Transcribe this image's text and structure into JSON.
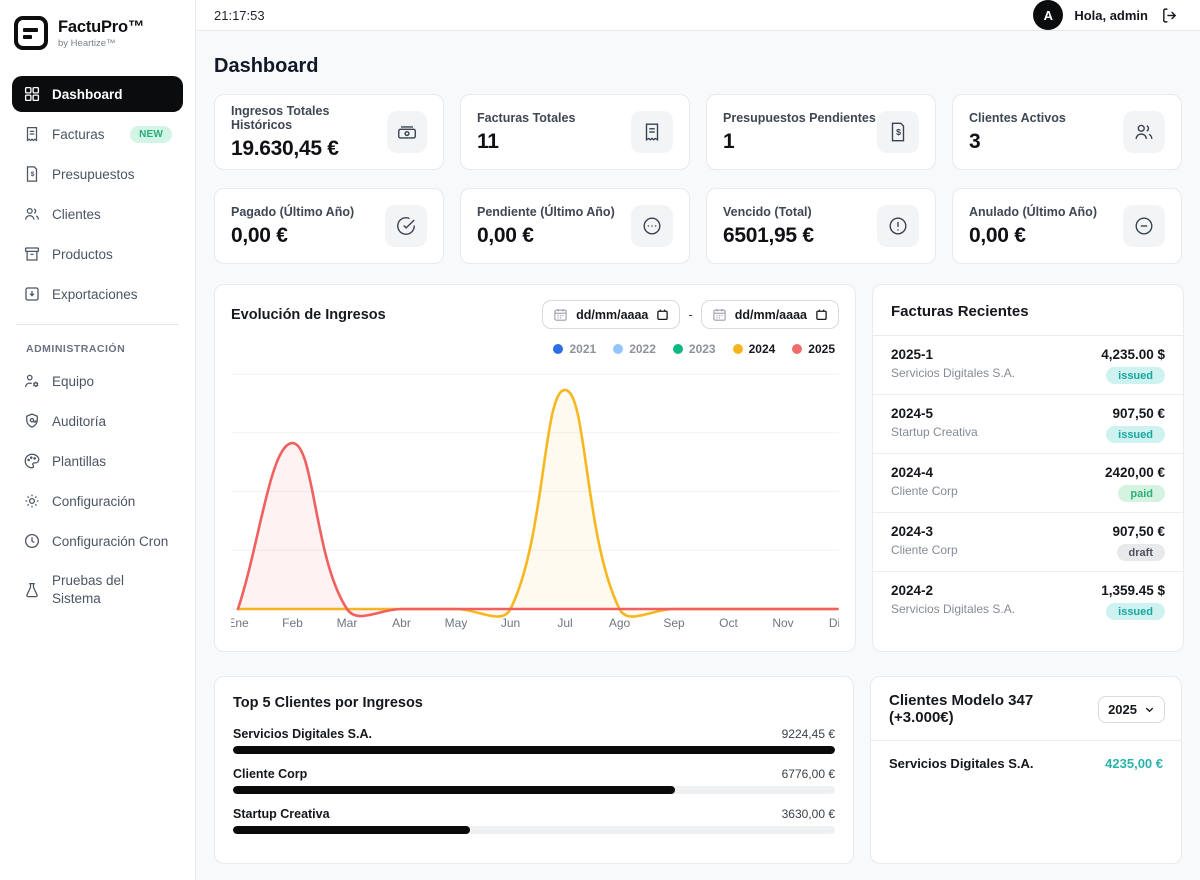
{
  "brand": {
    "name": "FactuPro™",
    "byline": "by Heartize™"
  },
  "topbar": {
    "clock": "21:17:53",
    "greeting": "Hola, admin",
    "avatar_initial": "A"
  },
  "sidebar": {
    "items": [
      {
        "label": "Dashboard",
        "active": true
      },
      {
        "label": "Facturas",
        "badge": "NEW"
      },
      {
        "label": "Presupuestos"
      },
      {
        "label": "Clientes"
      },
      {
        "label": "Productos"
      },
      {
        "label": "Exportaciones"
      }
    ],
    "section_label": "ADMINISTRACIÓN",
    "admin_items": [
      {
        "label": "Equipo"
      },
      {
        "label": "Auditoría"
      },
      {
        "label": "Plantillas"
      },
      {
        "label": "Configuración"
      },
      {
        "label": "Configuración Cron"
      },
      {
        "label": "Pruebas del Sistema"
      }
    ]
  },
  "page": {
    "title": "Dashboard"
  },
  "stats": [
    {
      "label": "Ingresos Totales Históricos",
      "value": "19.630,45 €",
      "icon": "banknote-icon"
    },
    {
      "label": "Facturas Totales",
      "value": "11",
      "icon": "invoice-icon"
    },
    {
      "label": "Presupuestos Pendientes",
      "value": "1",
      "icon": "quote-icon"
    },
    {
      "label": "Clientes Activos",
      "value": "3",
      "icon": "users-icon"
    },
    {
      "label": "Pagado (Último Año)",
      "value": "0,00 €",
      "icon": "check-circle-icon"
    },
    {
      "label": "Pendiente (Último Año)",
      "value": "0,00 €",
      "icon": "ellipsis-circle-icon"
    },
    {
      "label": "Vencido (Total)",
      "value": "6501,95 €",
      "icon": "alert-circle-icon"
    },
    {
      "label": "Anulado (Último Año)",
      "value": "0,00 €",
      "icon": "minus-circle-icon"
    }
  ],
  "revenue_chart": {
    "title": "Evolución de Ingresos",
    "date_from_placeholder": "dd/mm/aaaa",
    "date_to_placeholder": "dd/mm/aaaa",
    "range_separator": "-",
    "legend": [
      {
        "year": "2021",
        "color": "#2b6fe3",
        "text_class": "off"
      },
      {
        "year": "2022",
        "color": "#93c5fd",
        "text_class": "off"
      },
      {
        "year": "2023",
        "color": "#10b981",
        "text_class": "off"
      },
      {
        "year": "2024",
        "color": "#f6b51e",
        "text_class": "on"
      },
      {
        "year": "2025",
        "color": "#f26c6c",
        "text_class": "on"
      }
    ]
  },
  "chart_data": {
    "type": "line",
    "title": "Evolución de Ingresos",
    "categories": [
      "Ene",
      "Feb",
      "Mar",
      "Abr",
      "May",
      "Jun",
      "Jul",
      "Ago",
      "Sep",
      "Oct",
      "Nov",
      "Dic"
    ],
    "series": [
      {
        "name": "2021",
        "color": "#2b6fe3",
        "hidden": true,
        "values": null
      },
      {
        "name": "2022",
        "color": "#93c5fd",
        "hidden": true,
        "values": null
      },
      {
        "name": "2023",
        "color": "#10b981",
        "hidden": true,
        "values": null
      },
      {
        "name": "2024",
        "color": "#f7b721",
        "fill": "rgba(247,183,33,0.07)",
        "values": [
          0,
          0,
          0,
          0,
          0,
          0,
          5594.45,
          0,
          0,
          0,
          0,
          0
        ]
      },
      {
        "name": "2025",
        "color": "#f15f5f",
        "fill": "rgba(241,95,95,0.08)",
        "values": [
          0,
          4235,
          0,
          0,
          0,
          0,
          0,
          0,
          0,
          0,
          0,
          0
        ]
      }
    ],
    "ylim": [
      0,
      6000
    ],
    "y_grid_step": 1500,
    "grid": true,
    "y_ticks_visible": false,
    "legend_position": "top-right",
    "line_tension": 0.4
  },
  "recent_invoices": {
    "title": "Facturas Recientes",
    "items": [
      {
        "number": "2025-1",
        "client": "Servicios Digitales S.A.",
        "amount": "4,235.00 $",
        "status": "issued"
      },
      {
        "number": "2024-5",
        "client": "Startup Creativa",
        "amount": "907,50 €",
        "status": "issued"
      },
      {
        "number": "2024-4",
        "client": "Cliente Corp",
        "amount": "2420,00 €",
        "status": "paid"
      },
      {
        "number": "2024-3",
        "client": "Cliente Corp",
        "amount": "907,50 €",
        "status": "draft"
      },
      {
        "number": "2024-2",
        "client": "Servicios Digitales S.A.",
        "amount": "1,359.45 $",
        "status": "issued"
      }
    ]
  },
  "top_clients": {
    "title": "Top 5 Clientes por Ingresos",
    "items": [
      {
        "name": "Servicios Digitales S.A.",
        "amount": "9224,45 €",
        "pct": 100
      },
      {
        "name": "Cliente Corp",
        "amount": "6776,00 €",
        "pct": 73.5
      },
      {
        "name": "Startup Creativa",
        "amount": "3630,00 €",
        "pct": 39.4
      }
    ],
    "bar_color": "#0a0a0a"
  },
  "model347": {
    "title": "Clientes Modelo 347 (+3.000€)",
    "year_selected": "2025",
    "items": [
      {
        "name": "Servicios Digitales S.A.",
        "amount": "4235,00 €"
      }
    ],
    "amount_color": "#2ab5ab"
  }
}
